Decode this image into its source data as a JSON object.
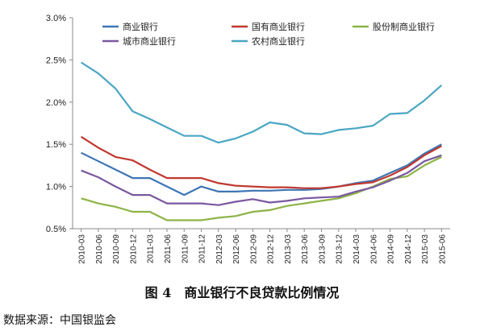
{
  "caption": "图 4　商业银行不良贷款比例情况",
  "source": "数据来源：中国银监会",
  "chart_data": {
    "type": "line",
    "categories": [
      "2010-03",
      "2010-06",
      "2010-09",
      "2010-12",
      "2011-03",
      "2011-06",
      "2011-09",
      "2011-12",
      "2012-03",
      "2012-06",
      "2012-09",
      "2012-12",
      "2013-03",
      "2013-06",
      "2013-09",
      "2013-12",
      "2014-03",
      "2014-06",
      "2014-09",
      "2014-12",
      "2015-03",
      "2015-06"
    ],
    "ylim": [
      0.5,
      3.0
    ],
    "yticks": [
      0.5,
      1.0,
      1.5,
      2.0,
      2.5,
      3.0
    ],
    "ytick_labels": [
      "0.5%",
      "1.0%",
      "1.5%",
      "2.0%",
      "2.5%",
      "3.0%"
    ],
    "grid": false,
    "legend_position": "top",
    "series": [
      {
        "name": "商业银行",
        "color": "#3d75b5",
        "values": [
          1.4,
          1.3,
          1.2,
          1.1,
          1.1,
          1.0,
          0.9,
          1.0,
          0.94,
          0.94,
          0.95,
          0.95,
          0.96,
          0.96,
          0.97,
          1.0,
          1.04,
          1.07,
          1.16,
          1.25,
          1.39,
          1.5
        ]
      },
      {
        "name": "国有商业银行",
        "color": "#c0392f",
        "values": [
          1.59,
          1.46,
          1.35,
          1.31,
          1.2,
          1.1,
          1.1,
          1.1,
          1.04,
          1.01,
          1.0,
          0.99,
          0.99,
          0.98,
          0.98,
          1.0,
          1.03,
          1.05,
          1.13,
          1.23,
          1.37,
          1.48
        ]
      },
      {
        "name": "股份制商业银行",
        "color": "#8db446",
        "values": [
          0.86,
          0.8,
          0.76,
          0.7,
          0.7,
          0.6,
          0.6,
          0.6,
          0.63,
          0.65,
          0.7,
          0.72,
          0.77,
          0.8,
          0.83,
          0.86,
          0.92,
          1.0,
          1.09,
          1.12,
          1.25,
          1.35
        ]
      },
      {
        "name": "城市商业银行",
        "color": "#7a58a0",
        "values": [
          1.19,
          1.11,
          1.0,
          0.9,
          0.9,
          0.8,
          0.8,
          0.8,
          0.78,
          0.82,
          0.85,
          0.81,
          0.83,
          0.86,
          0.87,
          0.88,
          0.94,
          0.99,
          1.07,
          1.16,
          1.3,
          1.37
        ]
      },
      {
        "name": "农村商业银行",
        "color": "#4aa6c3",
        "values": [
          2.47,
          2.34,
          2.16,
          1.89,
          1.8,
          1.7,
          1.6,
          1.6,
          1.52,
          1.57,
          1.65,
          1.76,
          1.73,
          1.63,
          1.62,
          1.67,
          1.69,
          1.72,
          1.86,
          1.87,
          2.02,
          2.2
        ]
      }
    ]
  }
}
